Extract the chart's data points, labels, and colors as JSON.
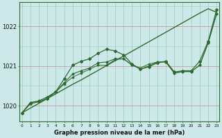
{
  "title": "Graphe pression niveau de la mer (hPa)",
  "background_color": "#cce8e8",
  "grid_color": "#99ccbb",
  "line_color": "#2d6b2d",
  "x_min": 0,
  "x_max": 23,
  "y_min": 1019.6,
  "y_max": 1022.6,
  "yticks": [
    1020,
    1021,
    1022
  ],
  "xticks": [
    0,
    1,
    2,
    3,
    4,
    5,
    6,
    7,
    8,
    9,
    10,
    11,
    12,
    13,
    14,
    15,
    16,
    17,
    18,
    19,
    20,
    21,
    22,
    23
  ],
  "series_straight": [
    1019.82,
    1019.94,
    1020.06,
    1020.18,
    1020.3,
    1020.42,
    1020.54,
    1020.65,
    1020.77,
    1020.89,
    1021.01,
    1021.13,
    1021.25,
    1021.37,
    1021.49,
    1021.61,
    1021.73,
    1021.85,
    1021.97,
    1022.09,
    1022.21,
    1022.33,
    1022.44,
    1022.35
  ],
  "series_peak": [
    1019.82,
    1020.05,
    1020.1,
    1020.18,
    1020.35,
    1020.68,
    1021.02,
    1021.12,
    1021.18,
    1021.32,
    1021.42,
    1021.38,
    1021.28,
    1021.05,
    1020.92,
    1020.98,
    1021.08,
    1021.12,
    1020.85,
    1020.88,
    1020.88,
    1021.12,
    1021.62,
    1022.42
  ],
  "series_mid1": [
    1019.82,
    1020.08,
    1020.12,
    1020.22,
    1020.35,
    1020.58,
    1020.8,
    1020.88,
    1020.95,
    1021.08,
    1021.1,
    1021.18,
    1021.18,
    1021.03,
    1020.92,
    1021.0,
    1021.1,
    1021.1,
    1020.82,
    1020.86,
    1020.86,
    1021.02,
    1021.58,
    1022.32
  ],
  "series_mid2": [
    1019.82,
    1020.08,
    1020.12,
    1020.22,
    1020.35,
    1020.55,
    1020.72,
    1020.82,
    1020.92,
    1021.02,
    1021.02,
    1021.16,
    1021.18,
    1021.02,
    1020.95,
    1021.05,
    1021.1,
    1021.1,
    1020.82,
    1020.86,
    1020.86,
    1021.02,
    1021.58,
    1022.32
  ]
}
